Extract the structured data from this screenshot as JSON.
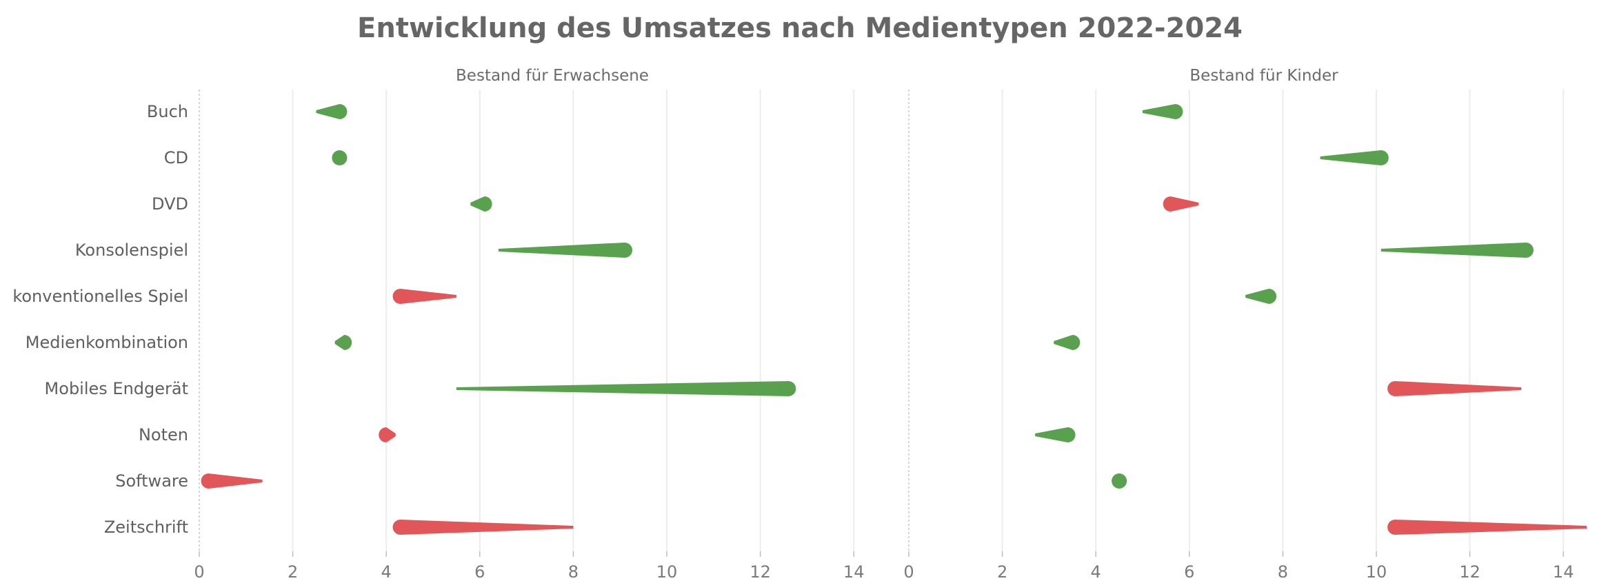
{
  "chart_data": {
    "type": "dumbbell",
    "title": "Entwicklung des Umsatzes nach Medientypen 2022-2024",
    "categories": [
      "Buch",
      "CD",
      "DVD",
      "Konsolenspiel",
      "konventionelles Spiel",
      "Medienkombination",
      "Mobiles Endgerät",
      "Noten",
      "Software",
      "Zeitschrift"
    ],
    "x_ticks": [
      0,
      2,
      4,
      6,
      8,
      10,
      12,
      14
    ],
    "xlim": [
      0,
      14.8
    ],
    "colors": {
      "increase": "#59a14f",
      "decrease": "#e15759"
    },
    "panels": [
      {
        "name": "Bestand für Erwachsene",
        "start_2022": [
          2.5,
          3.0,
          5.8,
          6.4,
          5.5,
          2.9,
          5.5,
          4.2,
          1.35,
          8.0
        ],
        "end_2024": [
          3.0,
          3.0,
          6.1,
          9.1,
          4.3,
          3.1,
          12.6,
          4.0,
          0.2,
          4.3
        ]
      },
      {
        "name": "Bestand für Kinder",
        "start_2022": [
          5.0,
          8.8,
          6.2,
          10.1,
          7.2,
          3.1,
          13.1,
          2.7,
          4.5,
          14.5
        ],
        "end_2024": [
          5.7,
          10.1,
          5.6,
          13.2,
          7.7,
          3.5,
          10.4,
          3.4,
          4.5,
          10.4
        ]
      }
    ]
  }
}
